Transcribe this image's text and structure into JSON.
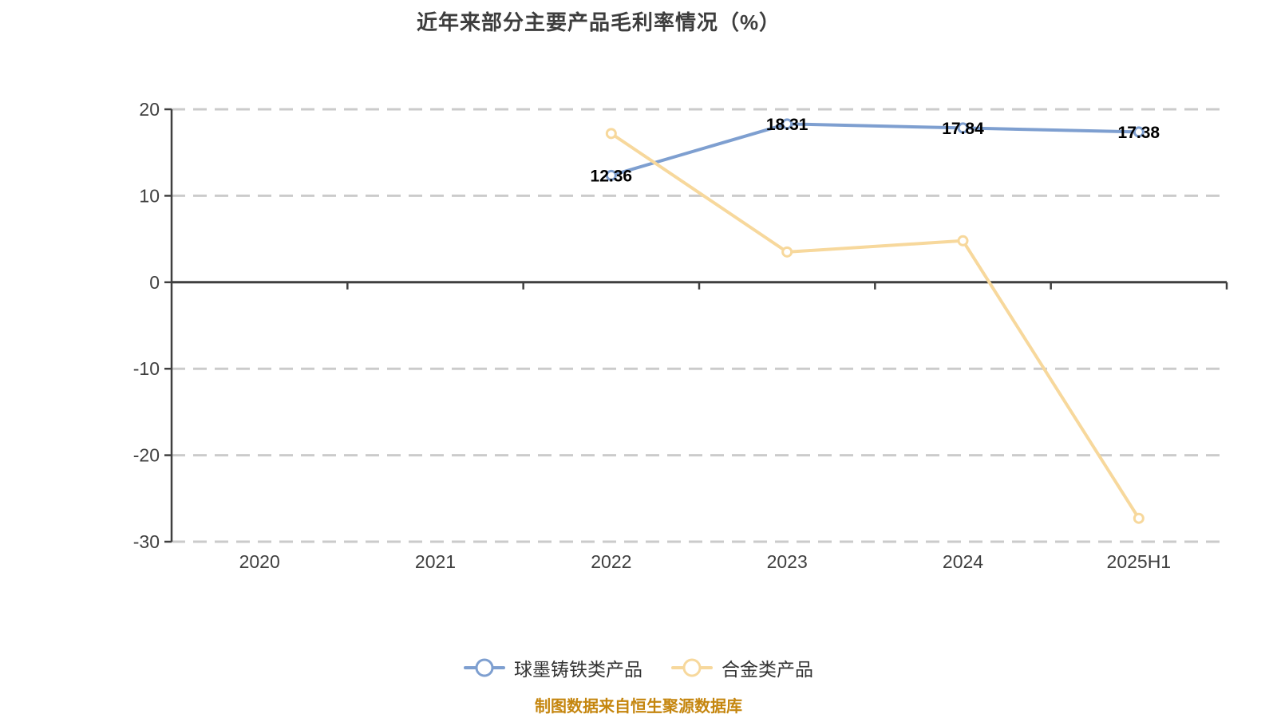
{
  "page": {
    "background": "#ffffff"
  },
  "chart_data": {
    "type": "line",
    "title": "近年来部分主要产品毛利率情况（%）",
    "categories": [
      "2020",
      "2021",
      "2022",
      "2023",
      "2024",
      "2025H1"
    ],
    "series": [
      {
        "name": "球墨铸铁类产品",
        "color": "#7E9FD0",
        "marker_fill": "#ffffff",
        "values": [
          null,
          null,
          12.36,
          18.31,
          17.84,
          17.38
        ],
        "data_labels": [
          null,
          null,
          "12.36",
          "18.31",
          "17.84",
          "17.38"
        ]
      },
      {
        "name": "合金类产品",
        "color": "#F7D89C",
        "marker_fill": "#ffffff",
        "values": [
          null,
          null,
          17.2,
          3.5,
          4.8,
          -27.3
        ],
        "data_labels": [
          null,
          null,
          null,
          null,
          null,
          null
        ]
      }
    ],
    "ylim": [
      -30,
      20
    ],
    "y_ticks": [
      20,
      10,
      0,
      -10,
      -20,
      -30
    ],
    "xlabel": "",
    "ylabel": "",
    "grid": "horizontal-dashed",
    "legend_position": "bottom",
    "source_note": "制图数据来自恒生聚源数据库",
    "styles": {
      "grid_color": "#cbcbcb",
      "axis_color": "#3f3f3f",
      "tick_label_color": "#3f3f3f",
      "value_label_color": "#000000",
      "title_color": "#3d3d3d",
      "legend_text_color": "#333333",
      "source_note_color": "#c5860f"
    }
  }
}
